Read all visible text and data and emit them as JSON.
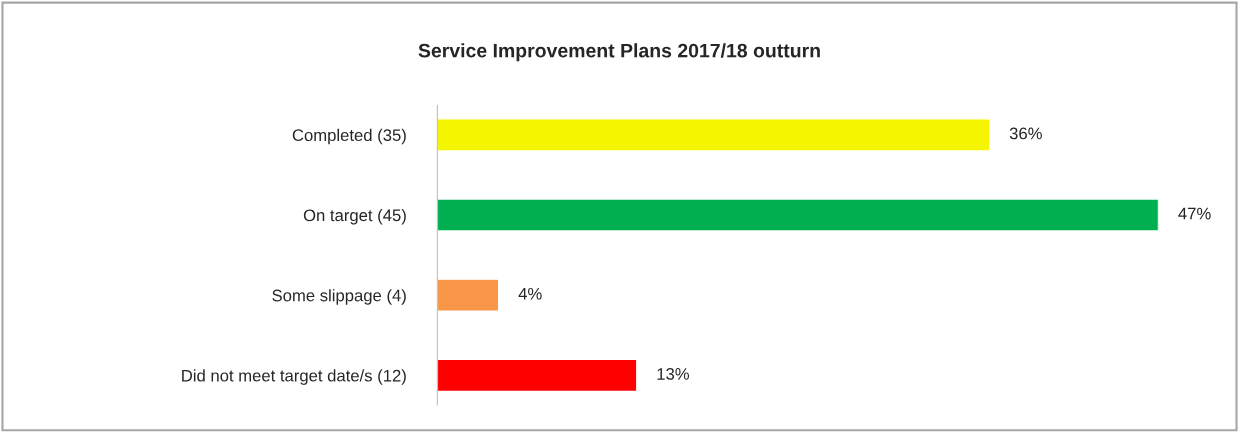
{
  "chart_data": {
    "type": "bar",
    "orientation": "horizontal",
    "title": "Service Improvement Plans 2017/18 outturn",
    "categories": [
      "Completed (35)",
      "On target (45)",
      "Some slippage (4)",
      "Did not meet target date/s (12)"
    ],
    "values": [
      36,
      47,
      4,
      13
    ],
    "value_labels": [
      "36%",
      "47%",
      "4%",
      "13%"
    ],
    "colors": [
      "#f5f500",
      "#00b050",
      "#f79646",
      "#ff0000"
    ],
    "grid": false,
    "legend": false
  }
}
